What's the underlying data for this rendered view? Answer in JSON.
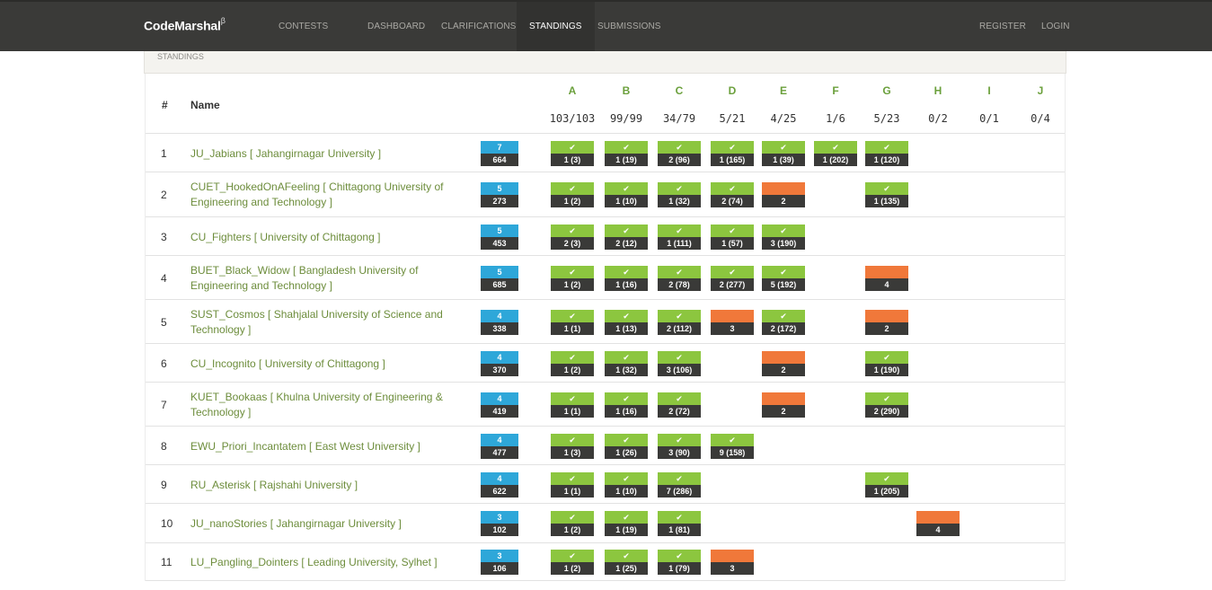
{
  "app": {
    "brand": "CodeMarshal",
    "brand_sup": "β"
  },
  "nav": {
    "items": [
      {
        "label": "CONTESTS",
        "key": "contests"
      },
      {
        "label": "DASHBOARD",
        "key": "dashboard"
      },
      {
        "label": "CLARIFICATIONS",
        "key": "clarifications"
      },
      {
        "label": "STANDINGS",
        "key": "standings",
        "active": true
      },
      {
        "label": "SUBMISSIONS",
        "key": "submissions"
      }
    ],
    "right": [
      {
        "label": "REGISTER",
        "key": "register"
      },
      {
        "label": "LOGIN",
        "key": "login"
      }
    ]
  },
  "breadcrumb": "STANDINGS",
  "table": {
    "hash_header": "#",
    "name_header": "Name",
    "problems": [
      {
        "letter": "A",
        "stat": "103/103"
      },
      {
        "letter": "B",
        "stat": "99/99"
      },
      {
        "letter": "C",
        "stat": "34/79"
      },
      {
        "letter": "D",
        "stat": "5/21"
      },
      {
        "letter": "E",
        "stat": "4/25"
      },
      {
        "letter": "F",
        "stat": "1/6"
      },
      {
        "letter": "G",
        "stat": "5/23"
      },
      {
        "letter": "H",
        "stat": "0/2"
      },
      {
        "letter": "I",
        "stat": "0/1"
      },
      {
        "letter": "J",
        "stat": "0/4"
      }
    ],
    "rows": [
      {
        "rank": "1",
        "name": "JU_Jabians [ Jahangirnagar University ]",
        "solved": "7",
        "penalty": "664",
        "cells": [
          [
            "ac",
            "1 (3)"
          ],
          [
            "ac",
            "1 (19)"
          ],
          [
            "ac",
            "2 (96)"
          ],
          [
            "ac",
            "1 (165)"
          ],
          [
            "ac",
            "1 (39)"
          ],
          [
            "ac",
            "1 (202)"
          ],
          [
            "ac",
            "1 (120)"
          ],
          null,
          null,
          null
        ]
      },
      {
        "rank": "2",
        "name": "CUET_HookedOnAFeeling [ Chittagong University of Engineering and Technology ]",
        "solved": "5",
        "penalty": "273",
        "cells": [
          [
            "ac",
            "1 (2)"
          ],
          [
            "ac",
            "1 (10)"
          ],
          [
            "ac",
            "1 (32)"
          ],
          [
            "ac",
            "2 (74)"
          ],
          [
            "wa",
            "2"
          ],
          null,
          [
            "ac",
            "1 (135)"
          ],
          null,
          null,
          null
        ]
      },
      {
        "rank": "3",
        "name": "CU_Fighters [ University of Chittagong ]",
        "solved": "5",
        "penalty": "453",
        "cells": [
          [
            "ac",
            "2 (3)"
          ],
          [
            "ac",
            "2 (12)"
          ],
          [
            "ac",
            "1 (111)"
          ],
          [
            "ac",
            "1 (57)"
          ],
          [
            "ac",
            "3 (190)"
          ],
          null,
          null,
          null,
          null,
          null
        ]
      },
      {
        "rank": "4",
        "name": "BUET_Black_Widow [ Bangladesh University of Engineering and Technology ]",
        "solved": "5",
        "penalty": "685",
        "cells": [
          [
            "ac",
            "1 (2)"
          ],
          [
            "ac",
            "1 (16)"
          ],
          [
            "ac",
            "2 (78)"
          ],
          [
            "ac",
            "2 (277)"
          ],
          [
            "ac",
            "5 (192)"
          ],
          null,
          [
            "wa",
            "4"
          ],
          null,
          null,
          null
        ]
      },
      {
        "rank": "5",
        "name": "SUST_Cosmos [ Shahjalal University of Science and Technology ]",
        "solved": "4",
        "penalty": "338",
        "cells": [
          [
            "ac",
            "1 (1)"
          ],
          [
            "ac",
            "1 (13)"
          ],
          [
            "ac",
            "2 (112)"
          ],
          [
            "wa",
            "3"
          ],
          [
            "ac",
            "2 (172)"
          ],
          null,
          [
            "wa",
            "2"
          ],
          null,
          null,
          null
        ]
      },
      {
        "rank": "6",
        "name": "CU_Incognito [ University of Chittagong ]",
        "solved": "4",
        "penalty": "370",
        "cells": [
          [
            "ac",
            "1 (2)"
          ],
          [
            "ac",
            "1 (32)"
          ],
          [
            "ac",
            "3 (106)"
          ],
          null,
          [
            "wa",
            "2"
          ],
          null,
          [
            "ac",
            "1 (190)"
          ],
          null,
          null,
          null
        ]
      },
      {
        "rank": "7",
        "name": "KUET_Bookaas [ Khulna University of Engineering & Technology ]",
        "solved": "4",
        "penalty": "419",
        "cells": [
          [
            "ac",
            "1 (1)"
          ],
          [
            "ac",
            "1 (16)"
          ],
          [
            "ac",
            "2 (72)"
          ],
          null,
          [
            "wa",
            "2"
          ],
          null,
          [
            "ac",
            "2 (290)"
          ],
          null,
          null,
          null
        ]
      },
      {
        "rank": "8",
        "name": "EWU_Priori_Incantatem [ East West University ]",
        "solved": "4",
        "penalty": "477",
        "cells": [
          [
            "ac",
            "1 (3)"
          ],
          [
            "ac",
            "1 (26)"
          ],
          [
            "ac",
            "3 (90)"
          ],
          [
            "ac",
            "9 (158)"
          ],
          null,
          null,
          null,
          null,
          null,
          null
        ]
      },
      {
        "rank": "9",
        "name": "RU_Asterisk [ Rajshahi University ]",
        "solved": "4",
        "penalty": "622",
        "cells": [
          [
            "ac",
            "1 (1)"
          ],
          [
            "ac",
            "1 (10)"
          ],
          [
            "ac",
            "7 (286)"
          ],
          null,
          null,
          null,
          [
            "ac",
            "1 (205)"
          ],
          null,
          null,
          null
        ]
      },
      {
        "rank": "10",
        "name": "JU_nanoStories [ Jahangirnagar University ]",
        "solved": "3",
        "penalty": "102",
        "cells": [
          [
            "ac",
            "1 (2)"
          ],
          [
            "ac",
            "1 (19)"
          ],
          [
            "ac",
            "1 (81)"
          ],
          null,
          null,
          null,
          null,
          [
            "wa",
            "4"
          ],
          null,
          null
        ]
      },
      {
        "rank": "11",
        "name": "LU_Pangling_Dointers [ Leading University, Sylhet ]",
        "solved": "3",
        "penalty": "106",
        "cells": [
          [
            "ac",
            "1 (2)"
          ],
          [
            "ac",
            "1 (25)"
          ],
          [
            "ac",
            "1 (79)"
          ],
          [
            "wa",
            "3"
          ],
          null,
          null,
          null,
          null,
          null,
          null
        ]
      }
    ]
  },
  "colors": {
    "accepted": "#8cc63f",
    "wrong": "#f0783a",
    "score": "#2ea7d9",
    "nav": "#3a3a38"
  }
}
